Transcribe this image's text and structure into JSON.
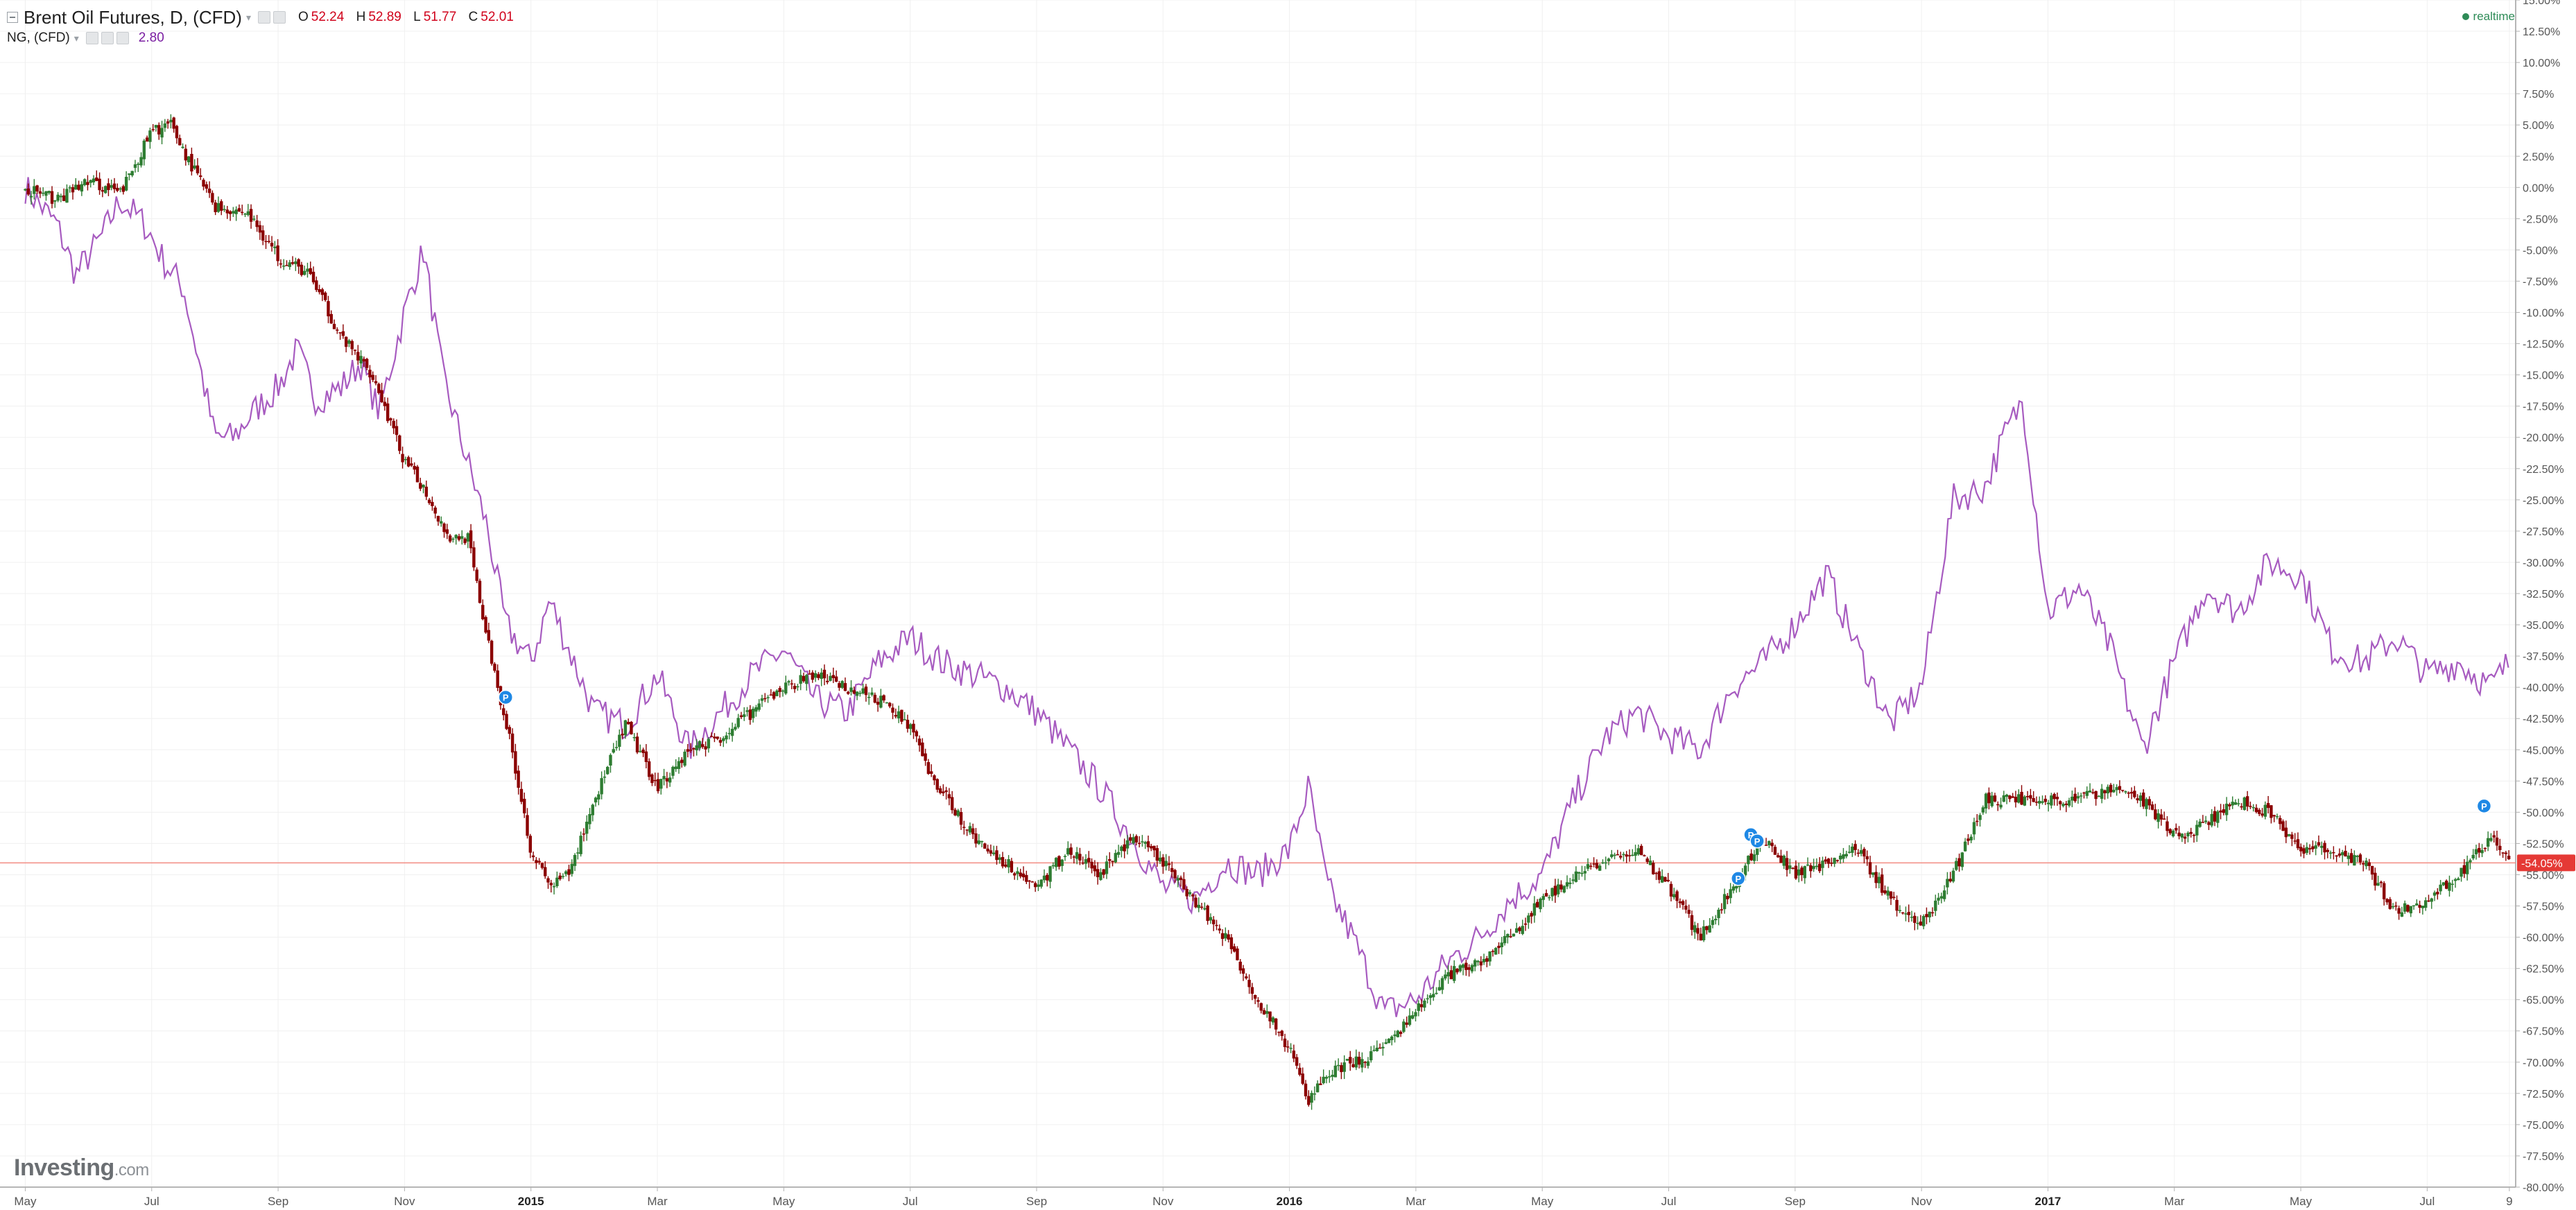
{
  "legend": {
    "main_symbol": "Brent Oil Futures, D, (CFD)",
    "ohlc": [
      {
        "key": "O",
        "value": "52.24"
      },
      {
        "key": "H",
        "value": "52.89"
      },
      {
        "key": "L",
        "value": "51.77"
      },
      {
        "key": "C",
        "value": "52.01"
      }
    ],
    "overlay_symbol": "NG, (CFD)",
    "overlay_value": "2.80"
  },
  "status": {
    "realtime": "realtime"
  },
  "branding": {
    "logo_main": "Investing",
    "logo_domain": ".com"
  },
  "colors": {
    "up": "#2e7d32",
    "down": "#8b0000",
    "overlay": "#a75bc0",
    "last_price_line": "#f28b82",
    "last_price_label": "#e53935",
    "pin": "#1e88e5"
  },
  "chart_data": {
    "type": "line",
    "title": "",
    "xlabel": "",
    "ylabel": "",
    "x_ticks": [
      {
        "label": "May",
        "month": 0
      },
      {
        "label": "Jul",
        "month": 2
      },
      {
        "label": "Sep",
        "month": 4
      },
      {
        "label": "Nov",
        "month": 6
      },
      {
        "label": "2015",
        "month": 8,
        "bold": true
      },
      {
        "label": "Mar",
        "month": 10
      },
      {
        "label": "May",
        "month": 12
      },
      {
        "label": "Jul",
        "month": 14
      },
      {
        "label": "Sep",
        "month": 16
      },
      {
        "label": "Nov",
        "month": 18
      },
      {
        "label": "2016",
        "month": 20,
        "bold": true
      },
      {
        "label": "Mar",
        "month": 22
      },
      {
        "label": "May",
        "month": 24
      },
      {
        "label": "Jul",
        "month": 26
      },
      {
        "label": "Sep",
        "month": 28
      },
      {
        "label": "Nov",
        "month": 30
      },
      {
        "label": "2017",
        "month": 32,
        "bold": true
      },
      {
        "label": "Mar",
        "month": 34
      },
      {
        "label": "May",
        "month": 36
      },
      {
        "label": "Jul",
        "month": 38
      },
      {
        "label": "9",
        "month": 39.3
      }
    ],
    "x_range_months": [
      -0.4,
      39.4
    ],
    "ylim": [
      -80,
      15
    ],
    "y_tick_step": 2.5,
    "y_unit": "%",
    "grid": true,
    "last_value_label": "-54.05%",
    "last_value": -54.05,
    "series": [
      {
        "name": "Brent Oil Futures, D, (CFD)",
        "style": "candlestick",
        "points": [
          [
            0,
            0
          ],
          [
            0.5,
            -1
          ],
          [
            1,
            0.5
          ],
          [
            1.5,
            -0.5
          ],
          [
            2,
            4.5
          ],
          [
            2.3,
            5
          ],
          [
            2.6,
            2
          ],
          [
            3,
            -1.5
          ],
          [
            3.5,
            -2
          ],
          [
            4,
            -5.5
          ],
          [
            4.5,
            -7
          ],
          [
            5,
            -12
          ],
          [
            5.5,
            -15
          ],
          [
            6,
            -22
          ],
          [
            6.3,
            -24
          ],
          [
            6.7,
            -28
          ],
          [
            7,
            -28
          ],
          [
            7.3,
            -36
          ],
          [
            7.7,
            -45
          ],
          [
            8,
            -53
          ],
          [
            8.3,
            -56
          ],
          [
            8.6,
            -55
          ],
          [
            9,
            -49
          ],
          [
            9.5,
            -43
          ],
          [
            10,
            -48
          ],
          [
            10.5,
            -45
          ],
          [
            11,
            -44
          ],
          [
            11.5,
            -42
          ],
          [
            12,
            -40
          ],
          [
            12.5,
            -39
          ],
          [
            13,
            -40
          ],
          [
            13.5,
            -41
          ],
          [
            14,
            -43
          ],
          [
            14.3,
            -47
          ],
          [
            14.6,
            -49
          ],
          [
            15,
            -52
          ],
          [
            15.5,
            -54
          ],
          [
            16,
            -56
          ],
          [
            16.5,
            -53
          ],
          [
            17,
            -55
          ],
          [
            17.5,
            -52
          ],
          [
            18,
            -54
          ],
          [
            18.5,
            -57
          ],
          [
            19,
            -60
          ],
          [
            19.5,
            -65
          ],
          [
            20,
            -69
          ],
          [
            20.3,
            -73
          ],
          [
            20.6,
            -71
          ],
          [
            21,
            -70
          ],
          [
            21.5,
            -69
          ],
          [
            22,
            -66
          ],
          [
            22.5,
            -63
          ],
          [
            23,
            -62
          ],
          [
            23.5,
            -60
          ],
          [
            24,
            -57
          ],
          [
            24.5,
            -55
          ],
          [
            25,
            -54
          ],
          [
            25.5,
            -53
          ],
          [
            26,
            -56
          ],
          [
            26.5,
            -60
          ],
          [
            27,
            -56
          ],
          [
            27.5,
            -52
          ],
          [
            28,
            -55
          ],
          [
            28.5,
            -54
          ],
          [
            29,
            -53
          ],
          [
            29.5,
            -57
          ],
          [
            30,
            -59
          ],
          [
            30.5,
            -55
          ],
          [
            31,
            -49
          ],
          [
            31.5,
            -49
          ],
          [
            32,
            -49
          ],
          [
            32.5,
            -49
          ],
          [
            33,
            -48
          ],
          [
            33.5,
            -49
          ],
          [
            34,
            -52
          ],
          [
            34.5,
            -51
          ],
          [
            35,
            -49
          ],
          [
            35.5,
            -50
          ],
          [
            36,
            -53
          ],
          [
            36.5,
            -53
          ],
          [
            37,
            -54
          ],
          [
            37.5,
            -58
          ],
          [
            38,
            -57
          ],
          [
            38.5,
            -55
          ],
          [
            39,
            -52
          ],
          [
            39.3,
            -54.05
          ]
        ]
      },
      {
        "name": "NG, (CFD)",
        "style": "line",
        "points": [
          [
            0,
            0
          ],
          [
            0.5,
            -3
          ],
          [
            0.8,
            -7
          ],
          [
            1.2,
            -4
          ],
          [
            1.5,
            -1
          ],
          [
            1.9,
            -3
          ],
          [
            2.2,
            -6
          ],
          [
            2.5,
            -8
          ],
          [
            3,
            -20
          ],
          [
            3.3,
            -20
          ],
          [
            3.6,
            -18
          ],
          [
            4,
            -16
          ],
          [
            4.3,
            -13
          ],
          [
            4.6,
            -17
          ],
          [
            5,
            -16
          ],
          [
            5.3,
            -14
          ],
          [
            5.6,
            -18
          ],
          [
            6,
            -10
          ],
          [
            6.3,
            -5
          ],
          [
            6.6,
            -15
          ],
          [
            7,
            -22
          ],
          [
            7.3,
            -27
          ],
          [
            7.6,
            -35
          ],
          [
            8,
            -38
          ],
          [
            8.3,
            -33
          ],
          [
            8.6,
            -37
          ],
          [
            9,
            -42
          ],
          [
            9.5,
            -43
          ],
          [
            10,
            -39
          ],
          [
            10.5,
            -45
          ],
          [
            11,
            -42
          ],
          [
            11.5,
            -39
          ],
          [
            12,
            -37
          ],
          [
            12.5,
            -41
          ],
          [
            13,
            -42
          ],
          [
            13.5,
            -38
          ],
          [
            14,
            -36
          ],
          [
            14.5,
            -38
          ],
          [
            15,
            -39
          ],
          [
            15.5,
            -40
          ],
          [
            16,
            -42
          ],
          [
            16.5,
            -45
          ],
          [
            17,
            -48
          ],
          [
            17.5,
            -52
          ],
          [
            18,
            -56
          ],
          [
            18.5,
            -57
          ],
          [
            19,
            -54
          ],
          [
            19.5,
            -55
          ],
          [
            20,
            -53
          ],
          [
            20.3,
            -48
          ],
          [
            20.6,
            -56
          ],
          [
            21,
            -60
          ],
          [
            21.5,
            -66
          ],
          [
            22,
            -65
          ],
          [
            22.5,
            -62
          ],
          [
            23,
            -60
          ],
          [
            23.5,
            -57
          ],
          [
            24,
            -55
          ],
          [
            24.5,
            -49
          ],
          [
            25,
            -44
          ],
          [
            25.5,
            -42
          ],
          [
            26,
            -44
          ],
          [
            26.5,
            -45
          ],
          [
            27,
            -40
          ],
          [
            27.5,
            -38
          ],
          [
            28,
            -35
          ],
          [
            28.5,
            -31
          ],
          [
            29,
            -37
          ],
          [
            29.5,
            -43
          ],
          [
            30,
            -40
          ],
          [
            30.5,
            -25
          ],
          [
            31,
            -24
          ],
          [
            31.3,
            -20
          ],
          [
            31.6,
            -17
          ],
          [
            32,
            -34
          ],
          [
            32.5,
            -32
          ],
          [
            33,
            -37
          ],
          [
            33.5,
            -45
          ],
          [
            34,
            -38
          ],
          [
            34.5,
            -32
          ],
          [
            35,
            -34
          ],
          [
            35.5,
            -30
          ],
          [
            36,
            -31
          ],
          [
            36.5,
            -37
          ],
          [
            37,
            -38
          ],
          [
            37.5,
            -36
          ],
          [
            38,
            -39
          ],
          [
            38.5,
            -38
          ],
          [
            39,
            -40
          ],
          [
            39.3,
            -38
          ]
        ]
      }
    ],
    "pins": [
      {
        "label": "P",
        "month": 7.6,
        "value": -40.8
      },
      {
        "label": "P",
        "month": 27.3,
        "value": -51.8
      },
      {
        "label": "P",
        "month": 27.4,
        "value": -52.3
      },
      {
        "label": "P",
        "month": 27.1,
        "value": -55.3
      },
      {
        "label": "P",
        "month": 38.9,
        "value": -49.5
      }
    ]
  }
}
